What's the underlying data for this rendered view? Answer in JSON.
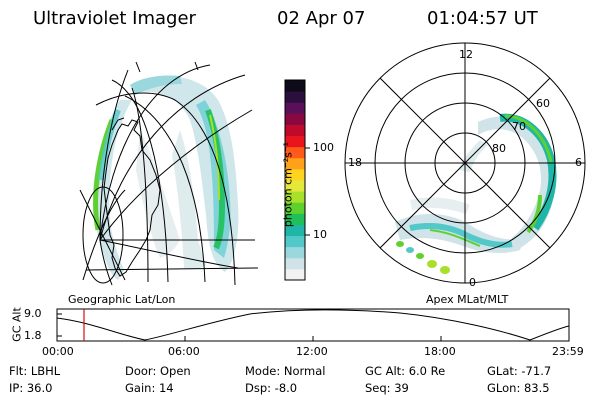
{
  "header": {
    "title": "Ultraviolet Imager",
    "date": "02 Apr 07",
    "time": "01:04:57 UT"
  },
  "colorbar": {
    "label": "photon cm⁻²s⁻¹",
    "ticks": [
      "100",
      "10"
    ],
    "colors": [
      "#f2f2f2",
      "#cfe3e8",
      "#9ad8dd",
      "#53c8c8",
      "#1fb6a8",
      "#1fbf5a",
      "#5fd12f",
      "#a9e02a",
      "#e3e83a",
      "#ffd420",
      "#ffa21a",
      "#ff5a1a",
      "#e8161c",
      "#bf0a2c",
      "#8a0840",
      "#5a0f5a",
      "#2b0f3c",
      "#0d0b1a"
    ]
  },
  "left_map": {
    "label": "Geographic Lat/Lon"
  },
  "right_map": {
    "label": "Apex MLat/MLT",
    "clock": [
      "12",
      "18",
      "6",
      "0"
    ],
    "lat": [
      "60",
      "70",
      "80"
    ]
  },
  "altitude_plot": {
    "ylabel": "GC Alt",
    "yticks": [
      "9.0",
      "1.8"
    ],
    "xticks": [
      "00:00",
      "06:00",
      "12:00",
      "18:00",
      "23:59"
    ]
  },
  "footer": {
    "filter": "Flt: LBHL",
    "ip": "IP: 36.0",
    "door": "Door: Open",
    "gain": "Gain: 14",
    "mode": "Mode: Normal",
    "dsp": "Dsp:   -8.0",
    "gcalt": "GC Alt: 6.0 Re",
    "seq": "Seq: 39",
    "glat": "GLat: -71.7",
    "glon": "GLon:  83.5"
  }
}
